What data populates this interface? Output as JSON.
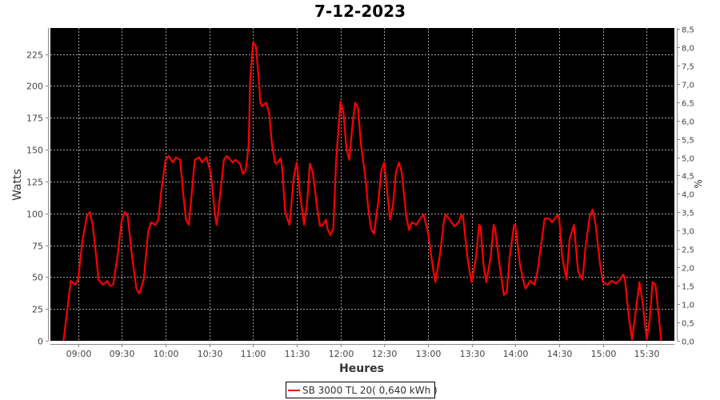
{
  "chart_data": {
    "type": "line",
    "title": "7-12-2023",
    "xlabel": "Heures",
    "ylabel": "Watts",
    "y2label": "%",
    "xlim": [
      "08:41",
      "15:49"
    ],
    "ylim": [
      0,
      245.5
    ],
    "y2lim": [
      0,
      8.52
    ],
    "x_ticks": [
      "09:00",
      "09:30",
      "10:00",
      "10:30",
      "11:00",
      "11:30",
      "12:00",
      "12:30",
      "13:00",
      "13:30",
      "14:00",
      "14:30",
      "15:00",
      "15:30"
    ],
    "y_ticks": [
      "0",
      "25",
      "50",
      "75",
      "100",
      "125",
      "150",
      "175",
      "200",
      "225"
    ],
    "y2_ticks": [
      "0,0",
      "0,5",
      "1,0",
      "1,5",
      "2,0",
      "2,5",
      "3,0",
      "3,5",
      "4,0",
      "4,5",
      "5,0",
      "5,5",
      "6,0",
      "6,5",
      "7,0",
      "7,5",
      "8,0",
      "8,5"
    ],
    "grid": true,
    "background": "#000000",
    "grid_color": "#a0a0a0",
    "legend_position": "bottom",
    "series": [
      {
        "name": "SB 3000 TL 20( 0,640 kWh )",
        "color": "#ff0000",
        "x": [
          "08:50",
          "08:55",
          "08:58",
          "09:00",
          "09:03",
          "09:06",
          "09:08",
          "09:10",
          "09:13",
          "09:14",
          "09:17",
          "09:20",
          "09:22",
          "09:24",
          "09:27",
          "09:30",
          "09:32",
          "09:34",
          "09:37",
          "09:40",
          "09:42",
          "09:45",
          "09:48",
          "09:50",
          "09:53",
          "09:55",
          "09:57",
          "10:00",
          "10:02",
          "10:05",
          "10:07",
          "10:10",
          "10:12",
          "10:14",
          "10:16",
          "10:19",
          "10:20",
          "10:23",
          "10:25",
          "10:28",
          "10:31",
          "10:34",
          "10:35",
          "10:37",
          "10:40",
          "10:42",
          "10:46",
          "10:48",
          "10:51",
          "10:53",
          "10:55",
          "10:57",
          "10:58",
          "11:00",
          "11:02",
          "11:04",
          "11:05",
          "11:06",
          "11:09",
          "11:11",
          "11:13",
          "11:15",
          "11:16",
          "11:19",
          "11:20",
          "11:22",
          "11:25",
          "11:28",
          "11:30",
          "11:32",
          "11:35",
          "11:37",
          "11:39",
          "11:41",
          "11:44",
          "11:46",
          "11:48",
          "11:50",
          "11:51",
          "11:53",
          "11:55",
          "11:57",
          "12:00",
          "12:02",
          "12:04",
          "12:06",
          "12:08",
          "12:10",
          "12:12",
          "12:14",
          "12:17",
          "12:19",
          "12:21",
          "12:23",
          "12:26",
          "12:28",
          "12:30",
          "12:32",
          "12:34",
          "12:36",
          "12:38",
          "12:40",
          "12:42",
          "12:45",
          "12:47",
          "12:49",
          "12:52",
          "12:54",
          "12:57",
          "13:00",
          "13:03",
          "13:05",
          "13:08",
          "13:11",
          "13:12",
          "13:15",
          "13:18",
          "13:21",
          "13:23",
          "13:24",
          "13:27",
          "13:29",
          "13:30",
          "13:33",
          "13:35",
          "13:36",
          "13:38",
          "13:40",
          "13:43",
          "13:45",
          "13:46",
          "13:49",
          "13:52",
          "13:54",
          "13:56",
          "13:59",
          "14:00",
          "14:03",
          "14:06",
          "14:07",
          "14:10",
          "14:13",
          "14:15",
          "14:18",
          "14:20",
          "14:23",
          "14:25",
          "14:29",
          "14:30",
          "14:32",
          "14:35",
          "14:37",
          "14:40",
          "14:41",
          "14:43",
          "14:46",
          "14:48",
          "14:51",
          "14:53",
          "14:55",
          "14:58",
          "15:00",
          "15:03",
          "15:06",
          "15:09",
          "15:11",
          "15:14",
          "15:15",
          "15:18",
          "15:20",
          "15:22",
          "15:25",
          "15:27",
          "15:30",
          "15:32",
          "15:34",
          "15:36",
          "15:38",
          "15:40"
        ],
        "y": [
          0,
          47,
          44,
          48,
          79,
          98,
          101,
          91,
          60,
          48,
          44,
          47,
          43,
          44,
          66,
          95,
          101,
          98,
          66,
          41,
          37,
          48,
          85,
          93,
          91,
          95,
          117,
          142,
          145,
          140,
          144,
          142,
          117,
          95,
          91,
          129,
          142,
          144,
          140,
          144,
          132,
          98,
          91,
          110,
          142,
          145,
          140,
          142,
          139,
          131,
          134,
          154,
          204,
          234,
          231,
          204,
          187,
          184,
          187,
          179,
          154,
          140,
          139,
          143,
          135,
          101,
          91,
          129,
          140,
          117,
          91,
          107,
          139,
          132,
          104,
          90,
          91,
          95,
          88,
          83,
          88,
          142,
          188,
          179,
          151,
          142,
          167,
          187,
          183,
          154,
          129,
          104,
          88,
          84,
          110,
          134,
          140,
          117,
          95,
          107,
          132,
          140,
          132,
          98,
          87,
          93,
          91,
          95,
          99,
          85,
          60,
          46,
          66,
          95,
          99,
          95,
          90,
          93,
          99,
          98,
          66,
          51,
          46,
          66,
          91,
          90,
          60,
          46,
          66,
          91,
          88,
          60,
          36,
          38,
          66,
          91,
          90,
          60,
          44,
          41,
          47,
          44,
          54,
          79,
          96,
          96,
          93,
          99,
          96,
          66,
          48,
          79,
          91,
          79,
          54,
          48,
          73,
          98,
          103,
          91,
          60,
          46,
          44,
          47,
          45,
          47,
          52,
          49,
          16,
          1,
          19,
          46,
          32,
          1,
          16,
          46,
          44,
          22,
          0
        ]
      }
    ]
  }
}
